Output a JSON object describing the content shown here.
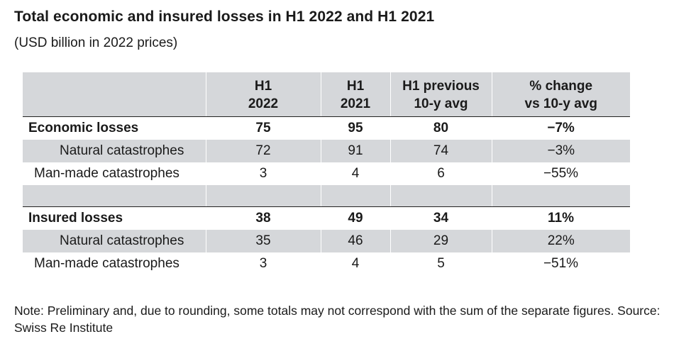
{
  "title": "Total economic and insured losses in H1 2022 and H1 2021",
  "subtitle": "(USD billion in 2022 prices)",
  "columns": [
    {
      "line1": "",
      "line2": ""
    },
    {
      "line1": "H1",
      "line2": "2022"
    },
    {
      "line1": "H1",
      "line2": "2021"
    },
    {
      "line1": "H1 previous",
      "line2": "10-y avg"
    },
    {
      "line1": "% change",
      "line2": "vs 10-y avg"
    }
  ],
  "rows": [
    {
      "label": "Economic losses",
      "h1_2022": "75",
      "h1_2021": "95",
      "avg": "80",
      "change": "−7%"
    },
    {
      "label": "Natural catastrophes",
      "h1_2022": "72",
      "h1_2021": "91",
      "avg": "74",
      "change": "−3%"
    },
    {
      "label": "Man-made catastrophes",
      "h1_2022": "3",
      "h1_2021": "4",
      "avg": "6",
      "change": "−55%"
    },
    {
      "label": "Insured losses",
      "h1_2022": "38",
      "h1_2021": "49",
      "avg": "34",
      "change": "11%"
    },
    {
      "label": "Natural catastrophes",
      "h1_2022": "35",
      "h1_2021": "46",
      "avg": "29",
      "change": "22%"
    },
    {
      "label": "Man-made catastrophes",
      "h1_2022": "3",
      "h1_2021": "4",
      "avg": "5",
      "change": "−51%"
    }
  ],
  "note": "Note: Preliminary and, due to rounding, some totals may not correspond with the sum of the separate figures. Source: Swiss Re Institute",
  "colors": {
    "row_shade": "#d5d7da",
    "rule": "#222222",
    "text": "#1a1a1a"
  }
}
